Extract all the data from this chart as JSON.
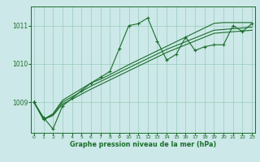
{
  "bg_color": "#cce8e8",
  "grid_color": "#99ccbb",
  "line_color": "#1a6e2a",
  "ylabel_ticks": [
    1009,
    1010,
    1011
  ],
  "xlabel_ticks": [
    0,
    1,
    2,
    3,
    4,
    5,
    6,
    7,
    8,
    9,
    10,
    11,
    12,
    13,
    14,
    15,
    16,
    17,
    18,
    19,
    20,
    21,
    22,
    23
  ],
  "xlabel": "Graphe pression niveau de la mer (hPa)",
  "s1": [
    1009.0,
    1008.6,
    1008.3,
    1008.9,
    1009.1,
    1009.3,
    1009.5,
    1009.65,
    1009.8,
    1010.4,
    1011.0,
    1011.05,
    1011.2,
    1010.6,
    1010.1,
    1010.25,
    1010.7,
    1010.35,
    1010.45,
    1010.5,
    1010.5,
    1011.0,
    1010.85,
    1011.05
  ],
  "s2": [
    1009.0,
    1008.55,
    1008.7,
    1009.05,
    1009.2,
    1009.35,
    1009.5,
    1009.6,
    1009.72,
    1009.85,
    1009.98,
    1010.1,
    1010.22,
    1010.34,
    1010.46,
    1010.58,
    1010.7,
    1010.82,
    1010.94,
    1011.06,
    1011.08,
    1011.08,
    1011.08,
    1011.08
  ],
  "s3": [
    1009.0,
    1008.55,
    1008.68,
    1009.0,
    1009.14,
    1009.28,
    1009.42,
    1009.54,
    1009.66,
    1009.78,
    1009.9,
    1010.02,
    1010.14,
    1010.26,
    1010.38,
    1010.48,
    1010.58,
    1010.68,
    1010.78,
    1010.88,
    1010.9,
    1010.92,
    1010.94,
    1010.96
  ],
  "s4": [
    1009.0,
    1008.55,
    1008.65,
    1008.95,
    1009.08,
    1009.21,
    1009.34,
    1009.46,
    1009.58,
    1009.7,
    1009.82,
    1009.94,
    1010.06,
    1010.18,
    1010.3,
    1010.4,
    1010.5,
    1010.6,
    1010.7,
    1010.8,
    1010.82,
    1010.84,
    1010.86,
    1010.88
  ],
  "ylim": [
    1008.2,
    1011.5
  ],
  "xlim": [
    -0.3,
    23.3
  ]
}
